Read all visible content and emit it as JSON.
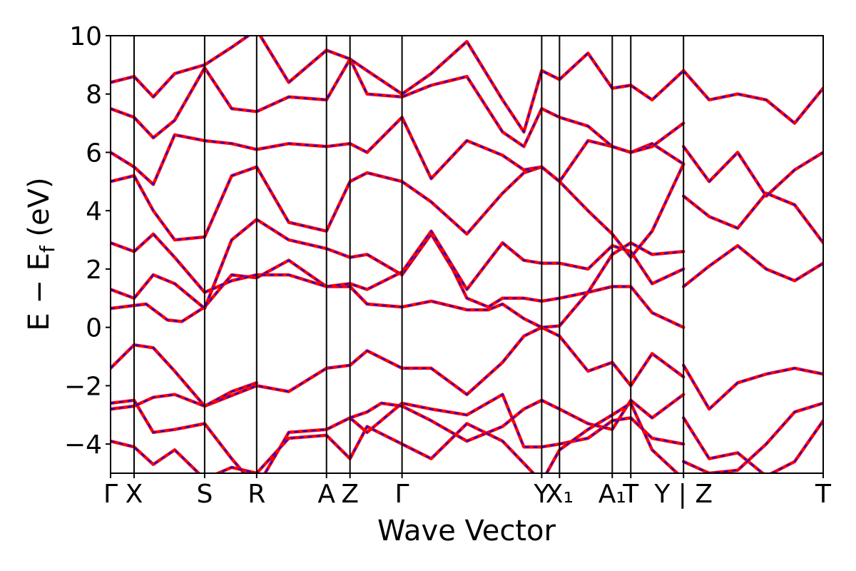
{
  "chart_data": {
    "type": "line",
    "xlabel": "Wave Vector",
    "ylabel_main": "E  −  E",
    "ylabel_sub": "f",
    "ylabel_unit": " (eV)",
    "ylim": [
      -5,
      10
    ],
    "yticks": [
      -4,
      -2,
      0,
      2,
      4,
      6,
      8,
      10
    ],
    "ytick_labels": [
      "−4",
      "−2",
      "0",
      "2",
      "4",
      "6",
      "8",
      "10"
    ],
    "xlim": [
      0,
      100
    ],
    "kpoints": [
      {
        "label": "Γ",
        "x": 0
      },
      {
        "label": "X",
        "x": 3.3
      },
      {
        "label": "S",
        "x": 13.2
      },
      {
        "label": "R",
        "x": 20.5
      },
      {
        "label": "A",
        "x": 30.3
      },
      {
        "label": "Z",
        "x": 33.6
      },
      {
        "label": "Γ",
        "x": 40.9
      },
      {
        "label": "Y",
        "x": 60.5
      },
      {
        "label": "X₁",
        "x": 63.0
      },
      {
        "label": "A₁",
        "x": 70.4
      },
      {
        "label": "T",
        "x": 73.0
      },
      {
        "label": "Y | Z",
        "x": 80.4
      },
      {
        "label": "T",
        "x": 100
      }
    ],
    "series_style": {
      "outer_color": "#ff0000",
      "inner_color": "#0000ff",
      "inner_dash": "dashed"
    },
    "grid": false,
    "bands": [
      {
        "x": [
          0,
          3.3,
          6,
          9,
          13.2,
          20.5,
          25,
          30.3,
          33.6,
          36,
          40.9,
          45,
          50,
          55,
          58,
          60.5,
          63,
          67,
          70.4,
          73,
          76,
          80.4
        ],
        "y": [
          -1.4,
          -0.6,
          -0.7,
          -1.5,
          -2.7,
          -2.0,
          -2.2,
          -1.4,
          -1.3,
          -0.8,
          -1.4,
          -1.4,
          -2.3,
          -1.2,
          -0.3,
          0.0,
          -0.3,
          -1.5,
          -1.2,
          -2.0,
          -0.9,
          -1.7
        ]
      },
      {
        "x": [
          80.4,
          84,
          88,
          92,
          96,
          100
        ],
        "y": [
          -1.3,
          -2.8,
          -1.9,
          -1.6,
          -1.4,
          -1.6
        ]
      },
      {
        "x": [
          0,
          3.3,
          5,
          8,
          10,
          13.2,
          17,
          20.5,
          25,
          30.3,
          33.6,
          36,
          40.9,
          45,
          50,
          53,
          55,
          58,
          60.5,
          63,
          67,
          70.4,
          73,
          76,
          80.4
        ],
        "y": [
          0.65,
          0.75,
          0.8,
          0.25,
          0.2,
          0.7,
          1.8,
          1.7,
          2.3,
          1.4,
          1.4,
          0.8,
          0.7,
          0.9,
          0.6,
          0.6,
          0.8,
          0.3,
          0.0,
          0.05,
          1.2,
          1.4,
          1.4,
          0.5,
          0.0
        ]
      },
      {
        "x": [
          0,
          3.3,
          6,
          9,
          13.2,
          17,
          20.5,
          25,
          30.3,
          33.6,
          36,
          40.9,
          45,
          48,
          50,
          53,
          55,
          58,
          60.5,
          63,
          67,
          70.4,
          73,
          76,
          80.4
        ],
        "y": [
          1.3,
          1.0,
          1.8,
          1.5,
          0.65,
          3.0,
          3.7,
          3.0,
          2.7,
          2.4,
          2.5,
          1.8,
          3.2,
          2.0,
          1.0,
          0.7,
          1.0,
          1.0,
          0.9,
          1.0,
          1.2,
          2.5,
          2.9,
          2.5,
          2.6
        ]
      },
      {
        "x": [
          80.4,
          84,
          88,
          92,
          96,
          100
        ],
        "y": [
          1.4,
          2.1,
          2.8,
          2.0,
          1.6,
          2.2
        ]
      },
      {
        "x": [
          0,
          3.3,
          6,
          9,
          13.2,
          17,
          20.5,
          25,
          30.3,
          33.6,
          36,
          40.9,
          45,
          50,
          55,
          58,
          60.5,
          63,
          67,
          70.4,
          73,
          76,
          80.4
        ],
        "y": [
          2.9,
          2.6,
          3.2,
          2.4,
          1.2,
          1.6,
          1.8,
          1.8,
          1.4,
          1.5,
          1.3,
          1.9,
          3.3,
          1.3,
          2.9,
          2.3,
          2.2,
          2.2,
          2.0,
          2.8,
          2.6,
          1.5,
          2.0
        ]
      },
      {
        "x": [
          0,
          3.3,
          6,
          9,
          13.2,
          17,
          20.5,
          25,
          30.3,
          33.6,
          36,
          40.9,
          45,
          50,
          55,
          58,
          60.5,
          63,
          67,
          70.4,
          73,
          76,
          80.4
        ],
        "y": [
          5.0,
          5.2,
          4.0,
          3.0,
          3.1,
          5.2,
          5.5,
          3.6,
          3.3,
          5.0,
          5.3,
          5.0,
          4.3,
          3.2,
          4.6,
          5.3,
          5.5,
          5.0,
          4.0,
          3.2,
          2.4,
          3.3,
          5.6
        ]
      },
      {
        "x": [
          80.4,
          84,
          88,
          92,
          96,
          100
        ],
        "y": [
          4.5,
          3.8,
          3.4,
          4.6,
          4.2,
          2.9
        ]
      },
      {
        "x": [
          0,
          3.3,
          6,
          9,
          13.2,
          17,
          20.5,
          25,
          30.3,
          33.6,
          36,
          40.9,
          45,
          50,
          55,
          58,
          60.5,
          63,
          67,
          70.4,
          73,
          76,
          80.4
        ],
        "y": [
          6.0,
          5.5,
          4.9,
          6.6,
          6.4,
          6.3,
          6.1,
          6.3,
          6.2,
          6.3,
          6.0,
          7.2,
          5.1,
          6.4,
          5.9,
          5.4,
          5.5,
          5.0,
          6.4,
          6.2,
          6.0,
          6.3,
          5.6
        ]
      },
      {
        "x": [
          80.4,
          84,
          88,
          92,
          96,
          100
        ],
        "y": [
          6.2,
          5.0,
          6.0,
          4.5,
          5.4,
          6.0
        ]
      },
      {
        "x": [
          0,
          3.3,
          6,
          9,
          13.2,
          17,
          20.5,
          25,
          30.3,
          33.6,
          36,
          40.9,
          45,
          50,
          55,
          58,
          60.5,
          63,
          67,
          70.4,
          73,
          76,
          80.4
        ],
        "y": [
          7.5,
          7.2,
          6.5,
          7.1,
          8.9,
          7.5,
          7.4,
          7.9,
          7.8,
          9.2,
          8.0,
          7.9,
          8.3,
          8.6,
          6.7,
          6.2,
          7.5,
          7.2,
          6.9,
          6.2,
          6.0,
          6.2,
          7.0
        ]
      },
      {
        "x": [
          80.4,
          84,
          88,
          92,
          96,
          100
        ],
        "y": [
          8.8,
          7.8,
          8.0,
          7.8,
          7.0,
          8.2
        ]
      },
      {
        "x": [
          0,
          3.3,
          6,
          9,
          13.2,
          17,
          20.5,
          25,
          30.3,
          33.6,
          36,
          40.9,
          45,
          50,
          55,
          58,
          60.5,
          63,
          67,
          70.4,
          73,
          76,
          80.4
        ],
        "y": [
          8.4,
          8.6,
          7.9,
          8.7,
          9.0,
          9.6,
          10.2,
          8.4,
          9.5,
          9.2,
          8.8,
          8.0,
          8.7,
          9.8,
          7.8,
          6.7,
          8.8,
          8.5,
          9.4,
          8.2,
          8.3,
          7.8,
          8.8
        ]
      },
      {
        "x": [
          0,
          3.3,
          6,
          9,
          13.2,
          17,
          20.5,
          25,
          30.3,
          33.6,
          36,
          40.9,
          45,
          50,
          55,
          58,
          60.5,
          63,
          67,
          70.4,
          73,
          76,
          80.4
        ],
        "y": [
          -2.6,
          -2.5,
          -3.6,
          -3.5,
          -3.3,
          -4.5,
          -5.5,
          -3.6,
          -3.5,
          -3.1,
          -3.6,
          -2.6,
          -2.8,
          -3.0,
          -2.3,
          -4.1,
          -4.1,
          -4.0,
          -3.8,
          -3.2,
          -3.1,
          -3.8,
          -4.0
        ]
      },
      {
        "x": [
          0,
          3.3,
          6,
          9,
          13.2,
          17,
          20.5
        ],
        "y": [
          -2.8,
          -2.7,
          -2.4,
          -2.3,
          -2.7,
          -2.2,
          -1.9
        ]
      },
      {
        "x": [
          33.6,
          36,
          38,
          40.9,
          45,
          50,
          55,
          58,
          60.5,
          63,
          67,
          70.4,
          73,
          76,
          80.4
        ],
        "y": [
          -3.1,
          -2.9,
          -2.6,
          -2.7,
          -3.2,
          -3.9,
          -3.4,
          -2.8,
          -2.5,
          -2.8,
          -3.3,
          -3.5,
          -2.5,
          -3.1,
          -2.3
        ]
      },
      {
        "x": [
          0,
          3.3,
          6,
          9,
          13.2,
          17,
          20.5,
          25,
          30.3,
          33.6,
          36,
          40.9,
          45,
          50,
          55,
          60.5,
          63,
          67,
          70.4,
          73,
          76,
          80.4
        ],
        "y": [
          -3.9,
          -4.1,
          -4.7,
          -4.2,
          -5.2,
          -4.8,
          -5.0,
          -3.8,
          -3.7,
          -4.5,
          -3.4,
          -4.0,
          -4.5,
          -3.3,
          -3.9,
          -5.3,
          -4.2,
          -3.5,
          -3.0,
          -2.6,
          -4.2,
          -5.2
        ]
      },
      {
        "x": [
          80.4,
          84,
          88,
          92,
          96,
          100
        ],
        "y": [
          -3.1,
          -4.5,
          -4.3,
          -5.1,
          -4.6,
          -3.2
        ]
      },
      {
        "x": [
          80.4,
          84,
          88,
          92,
          96,
          100
        ],
        "y": [
          -4.6,
          -5.0,
          -4.9,
          -4.0,
          -2.9,
          -2.6
        ]
      }
    ]
  }
}
